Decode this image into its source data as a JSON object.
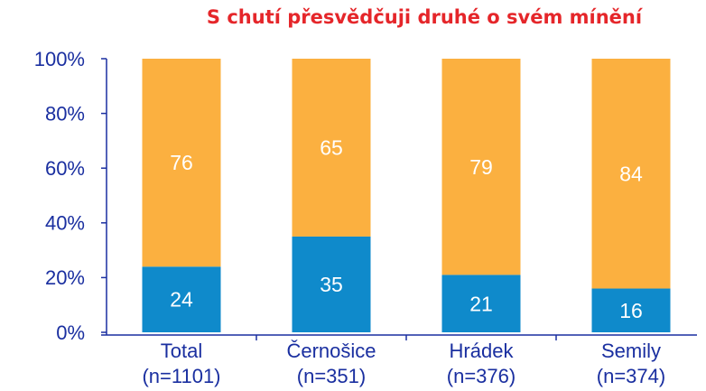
{
  "chart_data": {
    "type": "stacked_bar",
    "title": "S chutí přesvědčuji druhé o svém mínění",
    "categories": [
      [
        "Total",
        "(n=1101)"
      ],
      [
        "Černošice",
        "(n=351)"
      ],
      [
        "Hrádek",
        "(n=376)"
      ],
      [
        "Semily",
        "(n=374)"
      ]
    ],
    "series": [
      {
        "color": "#0f8acb",
        "values": [
          24,
          35,
          21,
          16
        ]
      },
      {
        "color": "#fbb040",
        "values": [
          76,
          65,
          79,
          84
        ]
      }
    ],
    "ylim": [
      0,
      100
    ],
    "yticks": [
      {
        "value": 0,
        "label": "0%"
      },
      {
        "value": 20,
        "label": "20%"
      },
      {
        "value": 40,
        "label": "40%"
      },
      {
        "value": 60,
        "label": "60%"
      },
      {
        "value": 80,
        "label": "80%"
      },
      {
        "value": 100,
        "label": "100%"
      }
    ],
    "grid": false
  }
}
